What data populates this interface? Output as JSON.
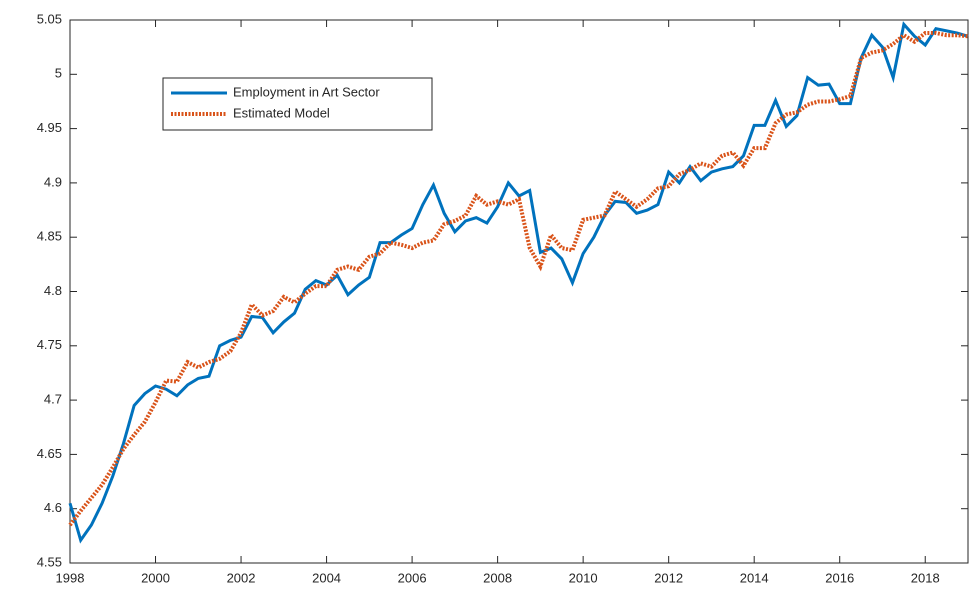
{
  "chart_data": {
    "type": "line",
    "x": [
      1998,
      1998.25,
      1998.5,
      1998.75,
      1999,
      1999.25,
      1999.5,
      1999.75,
      2000,
      2000.25,
      2000.5,
      2000.75,
      2001,
      2001.25,
      2001.5,
      2001.75,
      2002,
      2002.25,
      2002.5,
      2002.75,
      2003,
      2003.25,
      2003.5,
      2003.75,
      2004,
      2004.25,
      2004.5,
      2004.75,
      2005,
      2005.25,
      2005.5,
      2005.75,
      2006,
      2006.25,
      2006.5,
      2006.75,
      2007,
      2007.25,
      2007.5,
      2007.75,
      2008,
      2008.25,
      2008.5,
      2008.75,
      2009,
      2009.25,
      2009.5,
      2009.75,
      2010,
      2010.25,
      2010.5,
      2010.75,
      2011,
      2011.25,
      2011.5,
      2011.75,
      2012,
      2012.25,
      2012.5,
      2012.75,
      2013,
      2013.25,
      2013.5,
      2013.75,
      2014,
      2014.25,
      2014.5,
      2014.75,
      2015,
      2015.25,
      2015.5,
      2015.75,
      2016,
      2016.25,
      2016.5,
      2016.75,
      2017,
      2017.25,
      2017.5,
      2017.75,
      2018,
      2018.25,
      2018.5,
      2018.75,
      2019
    ],
    "series": [
      {
        "name": "Employment in Art Sector",
        "color": "#0072bd",
        "dash": false,
        "values": [
          4.605,
          4.571,
          4.585,
          4.605,
          4.63,
          4.66,
          4.695,
          4.706,
          4.713,
          4.71,
          4.704,
          4.714,
          4.72,
          4.722,
          4.75,
          4.755,
          4.758,
          4.777,
          4.776,
          4.762,
          4.772,
          4.78,
          4.802,
          4.81,
          4.806,
          4.815,
          4.797,
          4.806,
          4.813,
          4.845,
          4.845,
          4.852,
          4.858,
          4.88,
          4.898,
          4.872,
          4.855,
          4.865,
          4.868,
          4.863,
          4.878,
          4.9,
          4.888,
          4.893,
          4.836,
          4.84,
          4.83,
          4.808,
          4.835,
          4.85,
          4.87,
          4.883,
          4.882,
          4.872,
          4.875,
          4.88,
          4.91,
          4.9,
          4.915,
          4.902,
          4.91,
          4.913,
          4.915,
          4.925,
          4.953,
          4.953,
          4.976,
          4.952,
          4.962,
          4.997,
          4.99,
          4.991,
          4.973,
          4.973,
          5.015,
          5.036,
          5.025,
          4.997,
          5.046,
          5.035,
          5.027,
          5.042,
          5.04,
          5.038,
          5.035
        ]
      },
      {
        "name": "Estimated Model",
        "color": "#d95319",
        "dash": true,
        "values": [
          4.585,
          4.598,
          4.61,
          4.622,
          4.638,
          4.655,
          4.668,
          4.68,
          4.698,
          4.718,
          4.717,
          4.735,
          4.73,
          4.735,
          4.738,
          4.745,
          4.762,
          4.788,
          4.778,
          4.782,
          4.795,
          4.79,
          4.798,
          4.805,
          4.805,
          4.82,
          4.823,
          4.82,
          4.832,
          4.835,
          4.845,
          4.843,
          4.84,
          4.845,
          4.847,
          4.862,
          4.865,
          4.87,
          4.888,
          4.88,
          4.883,
          4.88,
          4.885,
          4.84,
          4.823,
          4.852,
          4.84,
          4.838,
          4.866,
          4.868,
          4.87,
          4.892,
          4.885,
          4.878,
          4.885,
          4.895,
          4.897,
          4.908,
          4.912,
          4.918,
          4.915,
          4.925,
          4.928,
          4.916,
          4.932,
          4.932,
          4.955,
          4.963,
          4.965,
          4.972,
          4.975,
          4.975,
          4.977,
          4.98,
          5.015,
          5.02,
          5.022,
          5.028,
          5.036,
          5.03,
          5.038,
          5.038,
          5.036,
          5.036,
          5.035
        ]
      }
    ],
    "xlim": [
      1998,
      2019
    ],
    "xticks": [
      1998,
      2000,
      2002,
      2004,
      2006,
      2008,
      2010,
      2012,
      2014,
      2016,
      2018
    ],
    "ylim": [
      4.55,
      5.05
    ],
    "yticks": [
      4.55,
      4.6,
      4.65,
      4.7,
      4.75,
      4.8,
      4.85,
      4.9,
      4.95,
      5,
      5.05
    ],
    "grid": false,
    "legend": "upper left"
  }
}
